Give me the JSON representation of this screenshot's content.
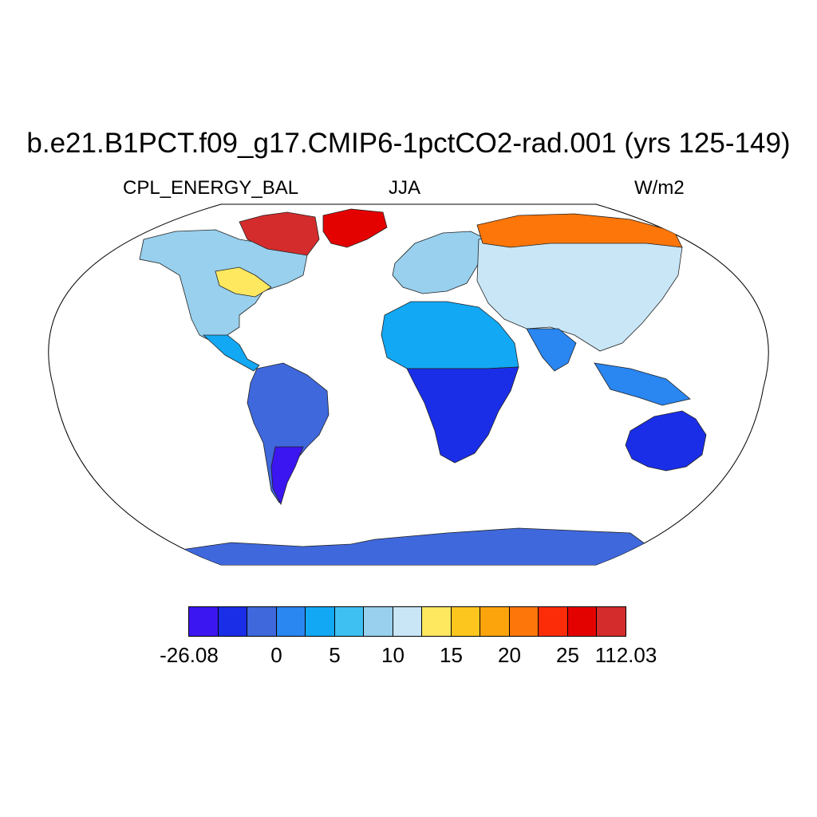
{
  "title": "b.e21.B1PCT.f09_g17.CMIP6-1pctCO2-rad.001 (yrs 125-149)",
  "subtitle_left": "CPL_ENERGY_BAL",
  "subtitle_center": "JJA",
  "subtitle_right": "W/m2",
  "colorbar": {
    "colors": [
      "#3c16f0",
      "#1a2ee8",
      "#3f68dc",
      "#2a86f0",
      "#12a8f4",
      "#3ec0f2",
      "#98d0ee",
      "#c8e6f6",
      "#fee85f",
      "#fdc61e",
      "#fca40c",
      "#fc760a",
      "#fc2c08",
      "#e40200",
      "#d42c2c"
    ],
    "labels": [
      {
        "text": "-26.08",
        "boundary": 0
      },
      {
        "text": "0",
        "boundary": 3
      },
      {
        "text": "5",
        "boundary": 5
      },
      {
        "text": "10",
        "boundary": 7
      },
      {
        "text": "15",
        "boundary": 9
      },
      {
        "text": "20",
        "boundary": 11
      },
      {
        "text": "25",
        "boundary": 13
      },
      {
        "text": "112.03",
        "boundary": 15
      }
    ]
  },
  "map": {
    "projection": "robinson",
    "ocean_color": "#ffffff",
    "regions": [
      {
        "name": "north-america",
        "value_class": 6
      },
      {
        "name": "canadian-arctic",
        "value_class": 14
      },
      {
        "name": "hudson-bay-region",
        "value_class": 8
      },
      {
        "name": "greenland",
        "value_class": 13
      },
      {
        "name": "central-america",
        "value_class": 4
      },
      {
        "name": "south-america",
        "value_class": 2
      },
      {
        "name": "patagonia",
        "value_class": 0
      },
      {
        "name": "europe",
        "value_class": 6
      },
      {
        "name": "africa-north",
        "value_class": 4
      },
      {
        "name": "africa-south",
        "value_class": 1
      },
      {
        "name": "asia",
        "value_class": 7
      },
      {
        "name": "siberia",
        "value_class": 11
      },
      {
        "name": "south-asia",
        "value_class": 3
      },
      {
        "name": "maritime-continent",
        "value_class": 3
      },
      {
        "name": "australia",
        "value_class": 1
      },
      {
        "name": "antarctica",
        "value_class": 2
      }
    ]
  }
}
